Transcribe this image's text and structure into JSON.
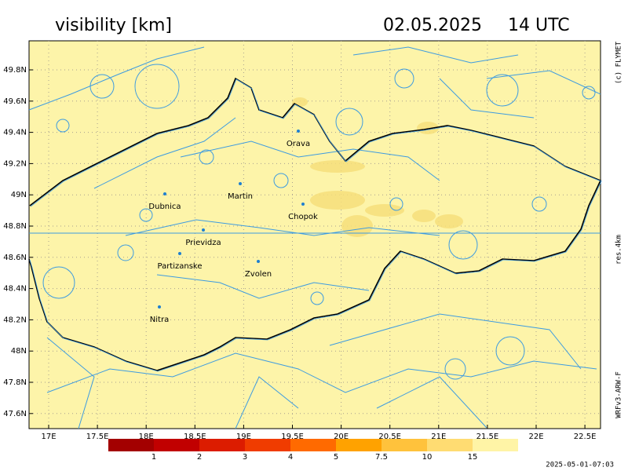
{
  "header": {
    "title": "visibility [km]",
    "date": "02.05.2025",
    "time": "14 UTC"
  },
  "map": {
    "background": "#fdf4a9",
    "lat_ticks": [
      {
        "value": 49.8,
        "label": "49.8N"
      },
      {
        "value": 49.6,
        "label": "49.6N"
      },
      {
        "value": 49.4,
        "label": "49.4N"
      },
      {
        "value": 49.2,
        "label": "49.2N"
      },
      {
        "value": 49,
        "label": "49N"
      },
      {
        "value": 48.8,
        "label": "48.8N"
      },
      {
        "value": 48.6,
        "label": "48.6N"
      },
      {
        "value": 48.4,
        "label": "48.4N"
      },
      {
        "value": 48.2,
        "label": "48.2N"
      },
      {
        "value": 48,
        "label": "48N"
      },
      {
        "value": 47.8,
        "label": "47.8N"
      },
      {
        "value": 47.6,
        "label": "47.6N"
      }
    ],
    "lon_ticks": [
      {
        "value": 17,
        "label": "17E"
      },
      {
        "value": 17.5,
        "label": "17.5E"
      },
      {
        "value": 18,
        "label": "18E"
      },
      {
        "value": 18.5,
        "label": "18.5E"
      },
      {
        "value": 19,
        "label": "19E"
      },
      {
        "value": 19.5,
        "label": "19.5E"
      },
      {
        "value": 20,
        "label": "20E"
      },
      {
        "value": 20.5,
        "label": "20.5E"
      },
      {
        "value": 21,
        "label": "21E"
      },
      {
        "value": 21.5,
        "label": "21.5E"
      },
      {
        "value": 22,
        "label": "22E"
      },
      {
        "value": 22.5,
        "label": "22.5E"
      }
    ],
    "cities": [
      "Orava",
      "Martin",
      "Dubnica",
      "Chopok",
      "Prievidza",
      "Partizanske",
      "Zvolen",
      "Nitra"
    ]
  },
  "colorbar": {
    "colors": [
      "#a30000",
      "#c10000",
      "#dc1c00",
      "#f03c00",
      "#ff6a00",
      "#ffa200",
      "#ffc23c",
      "#ffdc72",
      "#fff4a6"
    ],
    "ticks": [
      1,
      2,
      3,
      4,
      5,
      7.5,
      10,
      15
    ]
  },
  "side": {
    "copyright": "(c) FLYMET",
    "resolution": "res.4km",
    "model": "WRFv3-ARW-F"
  },
  "footer": {
    "timestamp": "2025-05-01-07:03"
  }
}
